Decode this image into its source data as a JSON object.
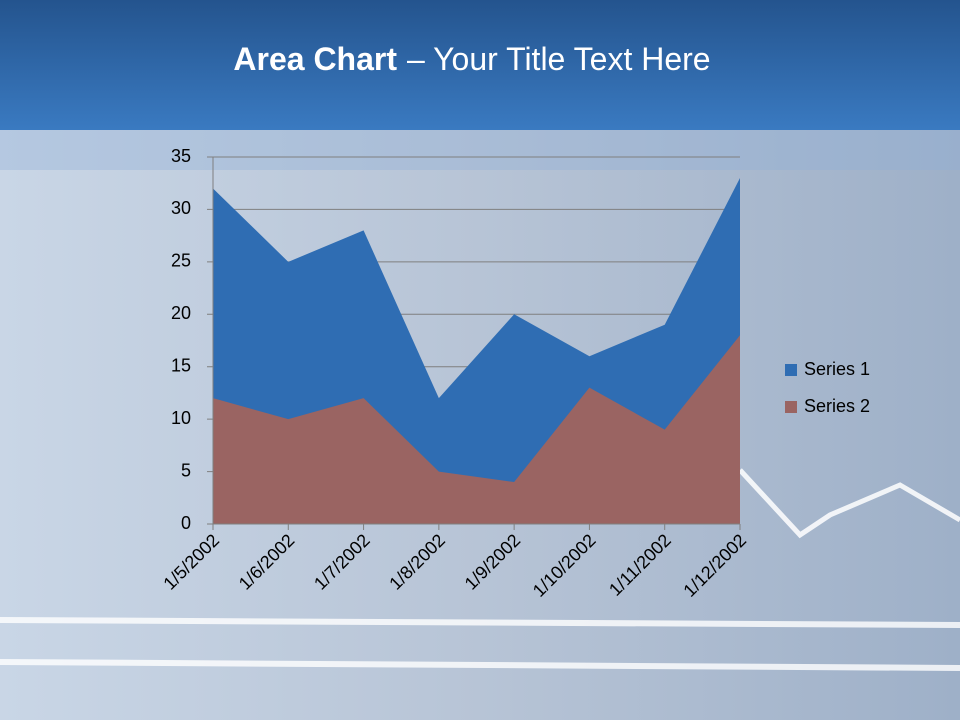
{
  "chart_data": {
    "type": "area",
    "title": {
      "bold": "Area Chart",
      "rest": "– Your Title Text Here"
    },
    "categories": [
      "1/5/2002",
      "1/6/2002",
      "1/7/2002",
      "1/8/2002",
      "1/9/2002",
      "1/10/2002",
      "1/11/2002",
      "1/12/2002"
    ],
    "series": [
      {
        "name": "Series 1",
        "color": "#2f6db3",
        "values": [
          32,
          25,
          28,
          12,
          20,
          16,
          19,
          33
        ]
      },
      {
        "name": "Series 2",
        "color": "#9a6462",
        "values": [
          12,
          10,
          12,
          5,
          4,
          13,
          9,
          18
        ]
      }
    ],
    "ylim": [
      0,
      35
    ],
    "yticks": [
      0,
      5,
      10,
      15,
      20,
      25,
      30,
      35
    ],
    "grid": true,
    "legend": "right"
  }
}
